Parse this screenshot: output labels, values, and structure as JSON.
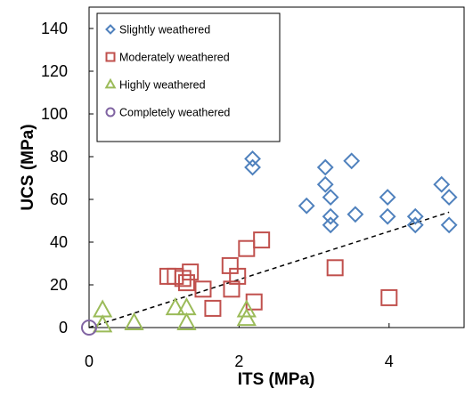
{
  "chart_data": {
    "type": "scatter",
    "xlabel": "ITS (MPa)",
    "ylabel": "UCS (MPa)",
    "xlim": [
      0,
      5
    ],
    "ylim": [
      0,
      150
    ],
    "x_ticks": [
      "0",
      "2",
      "4"
    ],
    "y_ticks": [
      "0",
      "20",
      "40",
      "60",
      "80",
      "100",
      "120",
      "140"
    ],
    "legend_position": "top-left",
    "series": [
      {
        "name": "Slightly weathered",
        "marker": "diamond",
        "color": "#4F81BD",
        "points": [
          {
            "x": 2.18,
            "y": 79
          },
          {
            "x": 2.18,
            "y": 75
          },
          {
            "x": 2.9,
            "y": 57
          },
          {
            "x": 3.15,
            "y": 75
          },
          {
            "x": 3.15,
            "y": 67
          },
          {
            "x": 3.22,
            "y": 61
          },
          {
            "x": 3.22,
            "y": 52
          },
          {
            "x": 3.22,
            "y": 48
          },
          {
            "x": 3.5,
            "y": 78
          },
          {
            "x": 3.55,
            "y": 53
          },
          {
            "x": 3.98,
            "y": 61
          },
          {
            "x": 3.98,
            "y": 52
          },
          {
            "x": 4.35,
            "y": 52
          },
          {
            "x": 4.35,
            "y": 48
          },
          {
            "x": 4.7,
            "y": 67
          },
          {
            "x": 4.8,
            "y": 61
          },
          {
            "x": 4.8,
            "y": 48
          }
        ]
      },
      {
        "name": "Moderately weathered",
        "marker": "square",
        "color": "#C0504D",
        "points": [
          {
            "x": 1.05,
            "y": 24
          },
          {
            "x": 1.15,
            "y": 24
          },
          {
            "x": 1.25,
            "y": 23
          },
          {
            "x": 1.3,
            "y": 21
          },
          {
            "x": 1.35,
            "y": 26
          },
          {
            "x": 1.52,
            "y": 18
          },
          {
            "x": 1.65,
            "y": 9
          },
          {
            "x": 1.88,
            "y": 29
          },
          {
            "x": 1.9,
            "y": 18
          },
          {
            "x": 1.98,
            "y": 24
          },
          {
            "x": 2.1,
            "y": 37
          },
          {
            "x": 2.2,
            "y": 12
          },
          {
            "x": 2.3,
            "y": 41
          },
          {
            "x": 3.28,
            "y": 28
          },
          {
            "x": 4.0,
            "y": 14
          }
        ]
      },
      {
        "name": "Highly weathered",
        "marker": "triangle",
        "color": "#9BBB59",
        "points": [
          {
            "x": 0.18,
            "y": 8
          },
          {
            "x": 0.18,
            "y": 1
          },
          {
            "x": 0.6,
            "y": 2
          },
          {
            "x": 1.15,
            "y": 9
          },
          {
            "x": 1.3,
            "y": 9
          },
          {
            "x": 1.3,
            "y": 2
          },
          {
            "x": 2.1,
            "y": 8
          },
          {
            "x": 2.1,
            "y": 4
          }
        ]
      },
      {
        "name": "Completely weathered",
        "marker": "circle",
        "color": "#8064A2",
        "points": [
          {
            "x": 0.0,
            "y": 0
          }
        ]
      }
    ],
    "trendline": {
      "style": "dashed",
      "color": "#000000",
      "points": [
        {
          "x": 0.0,
          "y": 0
        },
        {
          "x": 4.8,
          "y": 54
        }
      ]
    }
  }
}
